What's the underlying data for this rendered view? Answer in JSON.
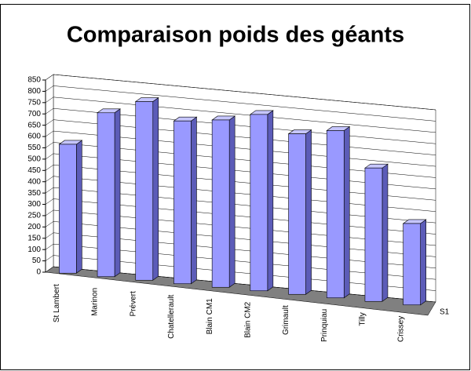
{
  "chart_data": {
    "type": "bar3d",
    "title": "Comparaison poids des géants",
    "categories": [
      "St Lambert",
      "Marinon",
      "Prévert",
      "Chatellerault",
      "Blain CM1",
      "Blain CM2",
      "Grimault",
      "Prinquiau",
      "Tilly",
      "Crissey"
    ],
    "series": [
      {
        "name": "S1",
        "color": "#9999ff",
        "values": [
          570,
          725,
          790,
          720,
          740,
          780,
          710,
          740,
          590,
          360
        ]
      }
    ],
    "ylim": [
      0,
      850
    ],
    "yticks": [
      0,
      50,
      100,
      150,
      200,
      250,
      300,
      350,
      400,
      450,
      500,
      550,
      600,
      650,
      700,
      750,
      800,
      850
    ],
    "grid": true
  }
}
